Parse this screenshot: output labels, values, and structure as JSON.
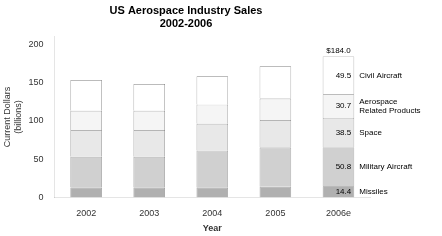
{
  "chart_data": {
    "type": "bar",
    "title": "US Aerospace Industry Sales\n2002-2006",
    "xlabel": "Year",
    "ylabel": "Current Dollars\n(billions)",
    "categories": [
      "2002",
      "2003",
      "2004",
      "2005",
      "2006e"
    ],
    "series": [
      {
        "name": "Missiles",
        "color": "#b0b0b0",
        "values": [
          13,
          13,
          13,
          14,
          14.4
        ],
        "value_labels": [
          null,
          null,
          null,
          null,
          "14.4"
        ]
      },
      {
        "name": "Military Aircraft",
        "color": "#d0d0d0",
        "values": [
          40,
          40,
          48,
          51,
          50.8
        ],
        "value_labels": [
          null,
          null,
          null,
          null,
          "50.8"
        ]
      },
      {
        "name": "Space",
        "color": "#e8e8e8",
        "values": [
          35,
          35,
          35,
          36,
          38.5
        ],
        "value_labels": [
          null,
          null,
          null,
          null,
          "38.5"
        ]
      },
      {
        "name": "Aerospace\nRelated Products",
        "color": "#f5f5f5",
        "values": [
          25,
          25,
          25,
          28,
          30.7
        ],
        "value_labels": [
          null,
          null,
          null,
          null,
          "30.7"
        ]
      },
      {
        "name": "Civil Aircraft",
        "color": "#ffffff",
        "values": [
          40,
          35,
          37,
          42,
          49.5
        ],
        "value_labels": [
          null,
          null,
          null,
          null,
          "49.5"
        ]
      }
    ],
    "stacked": true,
    "ylim": [
      0,
      210
    ],
    "yticks": [
      0,
      50,
      100,
      150,
      200
    ],
    "grid": false,
    "annotations": [
      {
        "text": "$184.0",
        "category": "2006e",
        "value": 184.0
      }
    ]
  }
}
